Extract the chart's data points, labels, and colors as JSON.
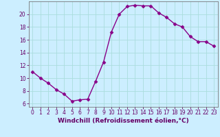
{
  "x": [
    0,
    1,
    2,
    3,
    4,
    5,
    6,
    7,
    8,
    9,
    10,
    11,
    12,
    13,
    14,
    15,
    16,
    17,
    18,
    19,
    20,
    21,
    22,
    23
  ],
  "y": [
    11.0,
    10.0,
    9.2,
    8.2,
    7.5,
    6.4,
    6.6,
    6.7,
    9.5,
    12.5,
    17.2,
    20.0,
    21.2,
    21.4,
    21.3,
    21.3,
    20.2,
    19.5,
    18.5,
    18.0,
    16.5,
    15.7,
    15.7,
    15.0
  ],
  "line_color": "#880088",
  "marker": "D",
  "marker_size": 2.5,
  "linewidth": 1.0,
  "xlabel": "Windchill (Refroidissement éolien,°C)",
  "ylim": [
    5.5,
    22
  ],
  "xlim": [
    -0.5,
    23.5
  ],
  "yticks": [
    6,
    8,
    10,
    12,
    14,
    16,
    18,
    20
  ],
  "xticks": [
    0,
    1,
    2,
    3,
    4,
    5,
    6,
    7,
    8,
    9,
    10,
    11,
    12,
    13,
    14,
    15,
    16,
    17,
    18,
    19,
    20,
    21,
    22,
    23
  ],
  "xtick_labels": [
    "0",
    "1",
    "2",
    "3",
    "4",
    "5",
    "6",
    "7",
    "8",
    "9",
    "10",
    "11",
    "12",
    "13",
    "14",
    "15",
    "16",
    "17",
    "18",
    "19",
    "20",
    "21",
    "22",
    "23"
  ],
  "bg_color": "#cceeff",
  "grid_color": "#aadddd",
  "spine_color": "#777777",
  "tick_color": "#660066",
  "label_color": "#660066",
  "label_fontsize": 6.5,
  "tick_fontsize": 5.5
}
